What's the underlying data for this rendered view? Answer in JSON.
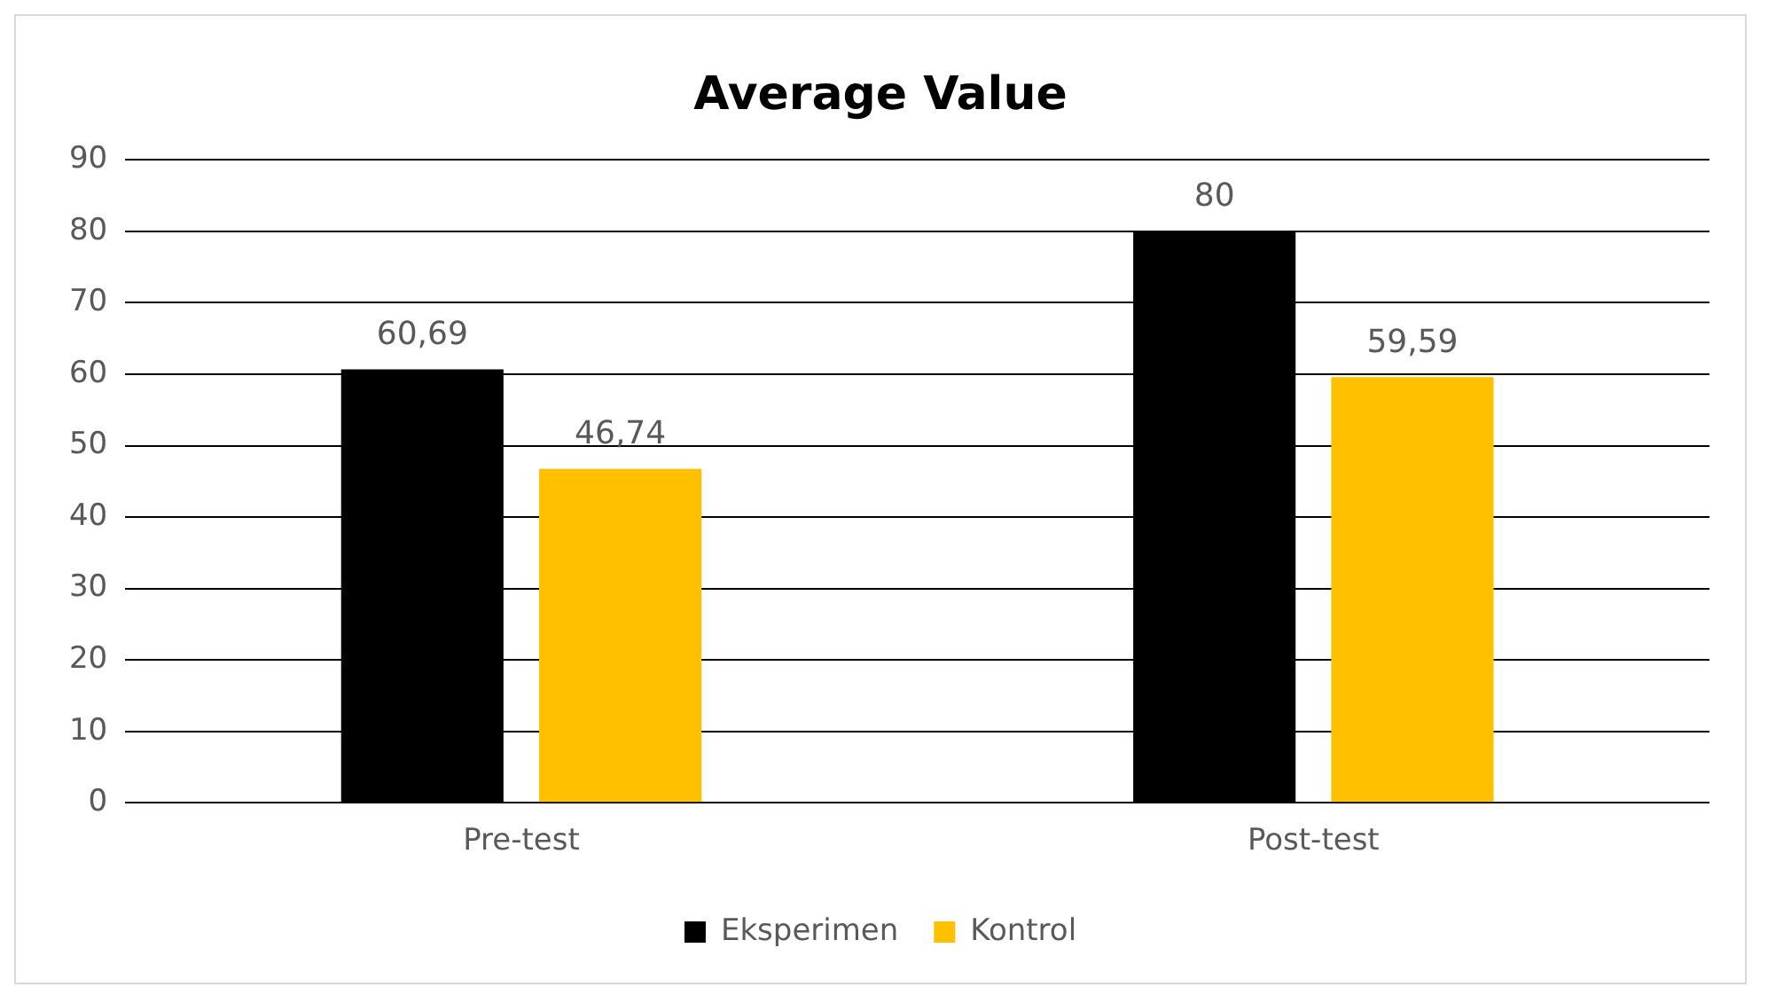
{
  "chart_data": {
    "type": "bar",
    "title": "Average Value",
    "categories": [
      "Pre-test",
      "Post-test"
    ],
    "series": [
      {
        "name": "Eksperimen",
        "color": "#000000",
        "values": [
          60.69,
          80
        ],
        "value_labels": [
          "60,69",
          "80"
        ]
      },
      {
        "name": "Kontrol",
        "color": "#ffc000",
        "values": [
          46.74,
          59.59
        ],
        "value_labels": [
          "46,74",
          "59,59"
        ]
      }
    ],
    "ylim": [
      0,
      90
    ],
    "yticks": [
      0,
      10,
      20,
      30,
      40,
      50,
      60,
      70,
      80,
      90
    ],
    "grid": "y",
    "legend": "bottom"
  }
}
